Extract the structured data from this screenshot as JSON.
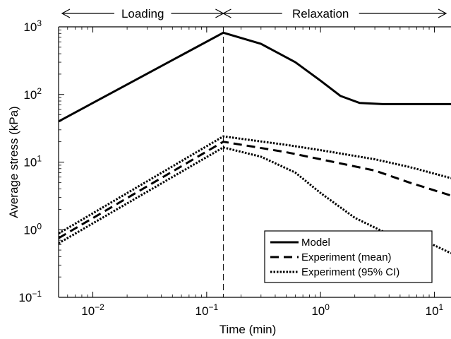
{
  "chart_data": {
    "type": "line",
    "xlabel": "Time (min)",
    "ylabel": "Average stress (kPa)",
    "xscale": "log",
    "yscale": "log",
    "xlim": [
      0.005,
      14
    ],
    "ylim": [
      0.1,
      1000
    ],
    "x_ticks": [
      {
        "value": 0.01,
        "base": "10",
        "exp": "−2"
      },
      {
        "value": 0.1,
        "base": "10",
        "exp": "−1"
      },
      {
        "value": 1,
        "base": "10",
        "exp": "0"
      },
      {
        "value": 10,
        "base": "10",
        "exp": "1"
      }
    ],
    "y_ticks": [
      {
        "value": 0.1,
        "base": "10",
        "exp": "−1"
      },
      {
        "value": 1,
        "base": "10",
        "exp": "0"
      },
      {
        "value": 10,
        "base": "10",
        "exp": "1"
      },
      {
        "value": 100,
        "base": "10",
        "exp": "2"
      },
      {
        "value": 1000,
        "base": "10",
        "exp": "3"
      }
    ],
    "grid": false,
    "legend_position": "bottom-right",
    "phase_boundary_x": 0.14,
    "phases": [
      {
        "label": "Loading",
        "x_start": 0.005,
        "x_end": 0.14
      },
      {
        "label": "Relaxation",
        "x_start": 0.14,
        "x_end": 14
      }
    ],
    "series": [
      {
        "name": "Model",
        "style": "solid",
        "points": [
          [
            0.005,
            40
          ],
          [
            0.14,
            820
          ],
          [
            0.3,
            560
          ],
          [
            0.6,
            300
          ],
          [
            1.0,
            160
          ],
          [
            1.5,
            95
          ],
          [
            2.2,
            75
          ],
          [
            3.5,
            72
          ],
          [
            14,
            72
          ]
        ]
      },
      {
        "name": "Experiment (mean)",
        "style": "dashed",
        "points": [
          [
            0.005,
            0.75
          ],
          [
            0.14,
            20
          ],
          [
            0.5,
            14
          ],
          [
            1.0,
            11
          ],
          [
            3.0,
            7.5
          ],
          [
            6.0,
            5.0
          ],
          [
            14,
            3.2
          ]
        ]
      },
      {
        "name": "Experiment (95% CI)",
        "style": "dotted",
        "points": [
          [
            0.005,
            0.88
          ],
          [
            0.14,
            24
          ],
          [
            0.5,
            18
          ],
          [
            1.0,
            15
          ],
          [
            3.0,
            11
          ],
          [
            6.0,
            8.5
          ],
          [
            14,
            5.8
          ]
        ]
      },
      {
        "name": "Experiment (95% CI)",
        "style": "dotted",
        "show_in_legend": false,
        "points": [
          [
            0.005,
            0.63
          ],
          [
            0.14,
            16.5
          ],
          [
            0.3,
            12
          ],
          [
            0.6,
            7
          ],
          [
            1.0,
            3.5
          ],
          [
            2.0,
            1.5
          ],
          [
            4.0,
            0.85
          ],
          [
            8.0,
            0.7
          ],
          [
            14,
            0.45
          ]
        ]
      }
    ]
  }
}
